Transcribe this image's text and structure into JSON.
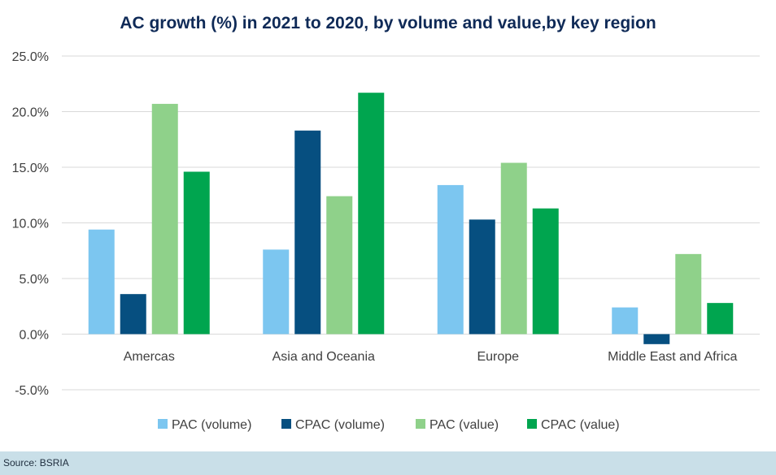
{
  "chart_data": {
    "type": "bar",
    "title": "AC growth (%) in 2021 to 2020, by volume and value,by key region",
    "categories": [
      "Amercas",
      "Asia and Oceania",
      "Europe",
      "Middle East and Africa"
    ],
    "series": [
      {
        "name": "PAC (volume)",
        "color": "#7cc6f0",
        "values": [
          9.4,
          7.6,
          13.4,
          2.4
        ]
      },
      {
        "name": "CPAC (volume)",
        "color": "#064f80",
        "values": [
          3.6,
          18.3,
          10.3,
          -0.9
        ]
      },
      {
        "name": "PAC (value)",
        "color": "#8fd18a",
        "values": [
          20.7,
          12.4,
          15.4,
          7.2
        ]
      },
      {
        "name": "CPAC (value)",
        "color": "#00a54f",
        "values": [
          14.6,
          21.7,
          11.3,
          2.8
        ]
      }
    ],
    "ylim": [
      -5,
      25
    ],
    "yticks": [
      "25.0%",
      "20.0%",
      "15.0%",
      "10.0%",
      "5.0%",
      "0.0%",
      "-5.0%"
    ],
    "ytick_values": [
      25,
      20,
      15,
      10,
      5,
      0,
      -5
    ],
    "grid": true,
    "legend": "bottom"
  },
  "source": "Source: BSRIA"
}
